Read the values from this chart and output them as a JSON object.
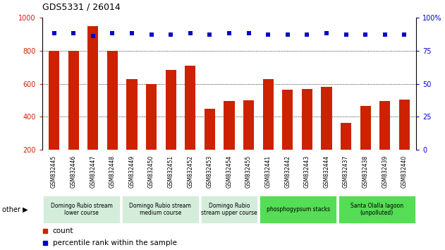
{
  "title": "GDS5331 / 26014",
  "samples": [
    "GSM832445",
    "GSM832446",
    "GSM832447",
    "GSM832448",
    "GSM832449",
    "GSM832450",
    "GSM832451",
    "GSM832452",
    "GSM832453",
    "GSM832454",
    "GSM832455",
    "GSM832441",
    "GSM832442",
    "GSM832443",
    "GSM832444",
    "GSM832437",
    "GSM832438",
    "GSM832439",
    "GSM832440"
  ],
  "counts": [
    800,
    800,
    950,
    800,
    630,
    600,
    685,
    710,
    450,
    498,
    500,
    630,
    565,
    570,
    583,
    363,
    465,
    498,
    505
  ],
  "percentile_ranks": [
    88,
    88,
    86,
    88,
    88,
    87,
    87,
    88,
    87,
    88,
    88,
    87,
    87,
    87,
    88,
    87,
    87,
    87,
    87
  ],
  "bar_color": "#cc2200",
  "dot_color": "#0000cc",
  "ylim_left": [
    200,
    1000
  ],
  "ylim_right": [
    0,
    100
  ],
  "yticks_left": [
    200,
    400,
    600,
    800,
    1000
  ],
  "yticks_right": [
    0,
    25,
    50,
    75,
    100
  ],
  "groups": [
    {
      "label": "Domingo Rubio stream\nlower course",
      "start": 0,
      "end": 4,
      "color": "#d4edda"
    },
    {
      "label": "Domingo Rubio stream\nmedium course",
      "start": 4,
      "end": 8,
      "color": "#d4edda"
    },
    {
      "label": "Domingo Rubio\nstream upper course",
      "start": 8,
      "end": 11,
      "color": "#d4edda"
    },
    {
      "label": "phosphogypsum stacks",
      "start": 11,
      "end": 15,
      "color": "#55dd55"
    },
    {
      "label": "Santa Olalla lagoon\n(unpolluted)",
      "start": 15,
      "end": 19,
      "color": "#55dd55"
    }
  ],
  "legend_count_color": "#cc2200",
  "legend_pct_color": "#0000cc",
  "tick_label_bg": "#cccccc",
  "other_label": "other",
  "grid_dotted_color": "#000000",
  "bar_width": 0.55
}
